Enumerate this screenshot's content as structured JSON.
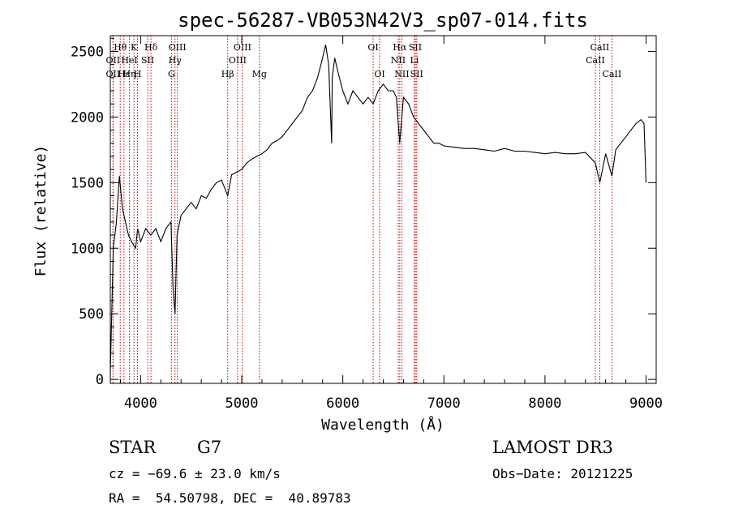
{
  "chart_data": {
    "type": "line",
    "title": "spec-56287-VB053N42V3_sp07-014.fits",
    "xlabel": "Wavelength (Å)",
    "ylabel": "Flux (relative)",
    "xlim": [
      3700,
      9100
    ],
    "ylim": [
      -30,
      2620
    ],
    "x_ticks": [
      4000,
      5000,
      6000,
      7000,
      8000,
      9000
    ],
    "y_ticks": [
      0,
      500,
      1000,
      1500,
      2000,
      2500
    ],
    "grid": false,
    "line_color": "#000000",
    "marker_line_color": "#cc0000",
    "series": [
      {
        "x": [
          3700,
          3730,
          3760,
          3790,
          3820,
          3850,
          3880,
          3910,
          3950,
          3970,
          4000,
          4050,
          4100,
          4150,
          4200,
          4250,
          4300,
          4320,
          4340,
          4360,
          4400,
          4450,
          4500,
          4550,
          4600,
          4650,
          4700,
          4750,
          4800,
          4861,
          4900,
          4950,
          5000,
          5050,
          5100,
          5150,
          5200,
          5250,
          5300,
          5350,
          5400,
          5450,
          5500,
          5550,
          5600,
          5650,
          5700,
          5750,
          5800,
          5830,
          5860,
          5890,
          5895,
          5920,
          5950,
          6000,
          6050,
          6100,
          6150,
          6200,
          6250,
          6300,
          6350,
          6400,
          6450,
          6500,
          6530,
          6563,
          6600,
          6650,
          6700,
          6750,
          6800,
          6850,
          6900,
          6950,
          7000,
          7100,
          7200,
          7300,
          7400,
          7500,
          7600,
          7700,
          7800,
          7900,
          8000,
          8100,
          8200,
          8300,
          8400,
          8498,
          8542,
          8600,
          8662,
          8700,
          8750,
          8800,
          8850,
          8900,
          8950,
          8980,
          9000
        ],
        "y": [
          50,
          1000,
          1200,
          1550,
          1300,
          1200,
          1100,
          1050,
          1000,
          1150,
          1050,
          1150,
          1100,
          1150,
          1050,
          1150,
          1200,
          700,
          500,
          1100,
          1250,
          1300,
          1350,
          1300,
          1400,
          1380,
          1450,
          1500,
          1520,
          1400,
          1560,
          1580,
          1600,
          1650,
          1680,
          1700,
          1720,
          1750,
          1800,
          1820,
          1850,
          1900,
          1950,
          2000,
          2050,
          2150,
          2200,
          2300,
          2450,
          2550,
          2400,
          1800,
          2300,
          2450,
          2350,
          2200,
          2100,
          2200,
          2150,
          2100,
          2150,
          2100,
          2200,
          2250,
          2200,
          2200,
          2150,
          1800,
          2150,
          2100,
          2000,
          1950,
          1900,
          1850,
          1800,
          1800,
          1780,
          1770,
          1760,
          1760,
          1750,
          1740,
          1760,
          1740,
          1740,
          1730,
          1720,
          1730,
          1720,
          1720,
          1730,
          1650,
          1500,
          1720,
          1550,
          1750,
          1800,
          1850,
          1900,
          1950,
          1980,
          1950,
          1500
        ]
      }
    ],
    "line_markers": [
      {
        "label": "Hθ",
        "x": 3798,
        "row": 1
      },
      {
        "label": "OII",
        "x": 3727,
        "row": 2
      },
      {
        "label": "OII",
        "x": 3727,
        "row": 3
      },
      {
        "label": "Hε",
        "x": 3835,
        "row": 3
      },
      {
        "label": "Hη",
        "x": 3889,
        "row": 3
      },
      {
        "label": "K",
        "x": 3934,
        "row": 1
      },
      {
        "label": "H",
        "x": 3969,
        "row": 3
      },
      {
        "label": "HeI",
        "x": 3889,
        "row": 2
      },
      {
        "label": "SII",
        "x": 4070,
        "row": 2
      },
      {
        "label": "Hδ",
        "x": 4102,
        "row": 1
      },
      {
        "label": "OIII",
        "x": 4363,
        "row": 1
      },
      {
        "label": "Hγ",
        "x": 4340,
        "row": 2
      },
      {
        "label": "G",
        "x": 4305,
        "row": 3
      },
      {
        "label": "Hβ",
        "x": 4861,
        "row": 3
      },
      {
        "label": "OIII",
        "x": 5007,
        "row": 1
      },
      {
        "label": "OIII",
        "x": 4959,
        "row": 2
      },
      {
        "label": "Mg",
        "x": 5175,
        "row": 3
      },
      {
        "label": "OI",
        "x": 6300,
        "row": 1
      },
      {
        "label": "OI",
        "x": 6364,
        "row": 3
      },
      {
        "label": "Hα",
        "x": 6563,
        "row": 1
      },
      {
        "label": "NII",
        "x": 6548,
        "row": 2
      },
      {
        "label": "NII",
        "x": 6584,
        "row": 3
      },
      {
        "label": "SII",
        "x": 6717,
        "row": 1
      },
      {
        "label": "Li",
        "x": 6708,
        "row": 2
      },
      {
        "label": "SII",
        "x": 6731,
        "row": 3
      },
      {
        "label": "CaII",
        "x": 8542,
        "row": 1
      },
      {
        "label": "CaII",
        "x": 8498,
        "row": 2
      },
      {
        "label": "CaII",
        "x": 8662,
        "row": 3
      }
    ]
  },
  "info": {
    "class_label": "STAR",
    "subclass": "G7",
    "survey": "LAMOST DR3",
    "cz": "cz = −69.6 ± 23.0 km/s",
    "obs_date": "Obs−Date: 20121225",
    "coords": "RA =  54.50798, DEC =  40.89783"
  }
}
